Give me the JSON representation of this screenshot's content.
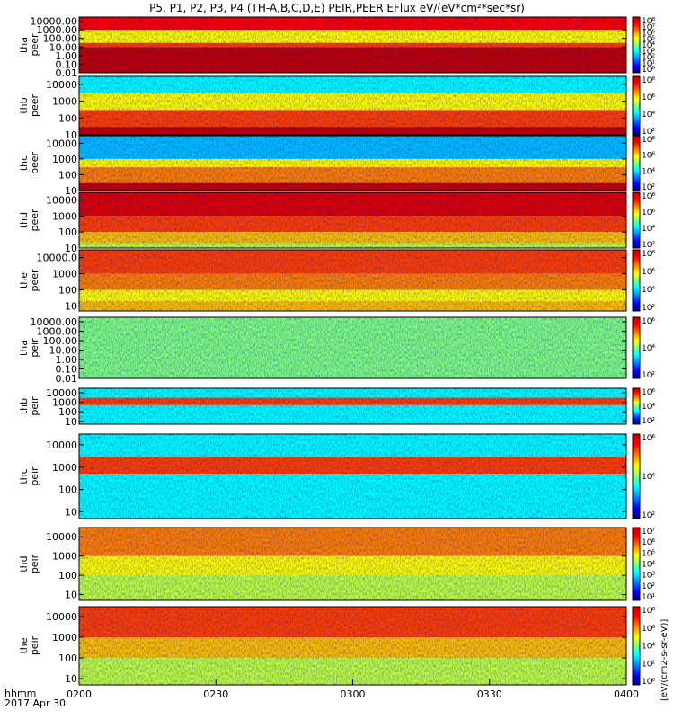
{
  "chart_data": {
    "type": "heatmap",
    "title": "P5, P1, P2, P3, P4 (TH-A,B,C,D,E) PEIR,PEER EFlux eV/(eV*cm²*sec*sr)",
    "x_corner_label": "hhmm",
    "x_date_label": "2017 Apr 30",
    "x_ticks": [
      "0200",
      "0230",
      "0300",
      "0330",
      "0400"
    ],
    "x_range": [
      "0200",
      "0400"
    ],
    "colorbar_unit_label": "[eV/(cm2-s-sr-eV)]",
    "panels": [
      {
        "probe": "tha",
        "species": "peer",
        "ytitle": "tha\npeer",
        "yscale": "log",
        "yrange": [
          0.01,
          30000
        ],
        "yticks": [
          "10000.00",
          "1000.00",
          "100.00",
          "10.00",
          "1.00",
          "0.10",
          "0.01"
        ],
        "cbar_ticks": [
          "10⁸",
          "10⁷",
          "10⁶",
          "10⁵",
          "10⁴",
          "10³",
          "10²",
          "10¹",
          "10⁰"
        ],
        "flux_by_band": [
          {
            "band": "1000-30000 eV",
            "log_flux": 7.0
          },
          {
            "band": "30-1000 eV",
            "log_flux": 5.0
          },
          {
            "band": "10-30 eV",
            "log_flux": 6.5
          },
          {
            "band": "0.01-10 eV",
            "log_flux": 8.0
          }
        ]
      },
      {
        "probe": "thb",
        "species": "peer",
        "ytitle": "thb\npeer",
        "yscale": "log",
        "yrange": [
          10,
          30000
        ],
        "yticks": [
          "10000",
          "1000",
          "100",
          "10"
        ],
        "cbar_ticks": [
          "10⁸",
          "10⁶",
          "10⁴",
          "10²"
        ],
        "flux_by_band": [
          {
            "band": "3000-30000 eV",
            "log_flux": 3.0
          },
          {
            "band": "300-3000 eV",
            "log_flux": 5.0
          },
          {
            "band": "30-300 eV",
            "log_flux": 6.5
          },
          {
            "band": "10-30 eV",
            "log_flux": 8.0
          }
        ]
      },
      {
        "probe": "thc",
        "species": "peer",
        "ytitle": "thc\npeer",
        "yscale": "log",
        "yrange": [
          10,
          30000
        ],
        "yticks": [
          "10000",
          "1000",
          "100",
          "10"
        ],
        "cbar_ticks": [
          "10⁸",
          "10⁶",
          "10⁴",
          "10²"
        ],
        "flux_by_band": [
          {
            "band": "1000-30000 eV",
            "log_flux": 2.5
          },
          {
            "band": "300-1000 eV",
            "log_flux": 5.0
          },
          {
            "band": "30-300 eV",
            "log_flux": 6.0
          },
          {
            "band": "10-30 eV",
            "log_flux": 8.0
          }
        ]
      },
      {
        "probe": "thd",
        "species": "peer",
        "ytitle": "thd\npeer",
        "yscale": "log",
        "yrange": [
          10,
          30000
        ],
        "yticks": [
          "10000",
          "1000",
          "100",
          "10"
        ],
        "cbar_ticks": [
          "10⁸",
          "10⁶",
          "10⁴",
          "10²"
        ],
        "flux_by_band": [
          {
            "band": "1000-30000 eV",
            "log_flux": 7.5
          },
          {
            "band": "100-1000 eV",
            "log_flux": 6.5
          },
          {
            "band": "20-100 eV",
            "log_flux": 5.5
          },
          {
            "band": "10-20 eV",
            "log_flux": 4.5
          }
        ]
      },
      {
        "probe": "the",
        "species": "peer",
        "ytitle": "the\npeer",
        "yscale": "log",
        "yrange": [
          5,
          30000
        ],
        "yticks": [
          "10000.0",
          "1000",
          "100",
          "10"
        ],
        "cbar_ticks": [
          "10⁸",
          "10⁶",
          "10⁴",
          "10²"
        ],
        "flux_by_band": [
          {
            "band": "1000-30000 eV",
            "log_flux": 6.5
          },
          {
            "band": "100-1000 eV",
            "log_flux": 6.0
          },
          {
            "band": "20-100 eV",
            "log_flux": 5.0
          },
          {
            "band": "5-20 eV",
            "log_flux": 5.5
          }
        ]
      },
      {
        "probe": "tha",
        "species": "peir",
        "ytitle": "tha\npeir",
        "yscale": "log",
        "yrange": [
          0.01,
          30000
        ],
        "yticks": [
          "10000.00",
          "1000.00",
          "100.00",
          "10.00",
          "1.00",
          "0.10",
          "0.01"
        ],
        "cbar_ticks": [
          "10⁶",
          "10⁴",
          "10²"
        ],
        "flux_by_band": [
          {
            "band": "0.01-30000 eV",
            "log_flux": 4.0
          }
        ]
      },
      {
        "probe": "thb",
        "species": "peir",
        "ytitle": "thb\npeir",
        "yscale": "log",
        "yrange": [
          5,
          30000
        ],
        "yticks": [
          "10000",
          "1000",
          "100",
          "10"
        ],
        "cbar_ticks": [
          "10⁶",
          "10⁴",
          "10²"
        ],
        "flux_by_band": [
          {
            "band": "3000-30000 eV",
            "log_flux": 3.0
          },
          {
            "band": "500-3000 eV",
            "log_flux": 6.5
          },
          {
            "band": "5-500 eV",
            "log_flux": 3.0
          }
        ]
      },
      {
        "probe": "thc",
        "species": "peir",
        "ytitle": "thc\npeir",
        "yscale": "log",
        "yrange": [
          5,
          30000
        ],
        "yticks": [
          "10000",
          "1000",
          "100",
          "10"
        ],
        "cbar_ticks": [
          "10⁶",
          "10⁴",
          "10²"
        ],
        "flux_by_band": [
          {
            "band": "3000-30000 eV",
            "log_flux": 3.0
          },
          {
            "band": "500-3000 eV",
            "log_flux": 6.5
          },
          {
            "band": "5-500 eV",
            "log_flux": 3.0
          }
        ]
      },
      {
        "probe": "thd",
        "species": "peir",
        "ytitle": "thd\npeir",
        "yscale": "log",
        "yrange": [
          5,
          30000
        ],
        "yticks": [
          "10000",
          "1000",
          "100",
          "10"
        ],
        "cbar_ticks": [
          "10⁷",
          "10⁶",
          "10⁵",
          "10⁴",
          "10³",
          "10²",
          "10¹"
        ],
        "flux_by_band": [
          {
            "band": "1000-30000 eV",
            "log_flux": 6.0
          },
          {
            "band": "100-1000 eV",
            "log_flux": 5.0
          },
          {
            "band": "5-100 eV",
            "log_flux": 4.5
          }
        ]
      },
      {
        "probe": "the",
        "species": "peir",
        "ytitle": "the\npeir",
        "yscale": "log",
        "yrange": [
          5,
          30000
        ],
        "yticks": [
          "10000",
          "1000",
          "100",
          "10"
        ],
        "cbar_ticks": [
          "10⁸",
          "10⁶",
          "10⁴",
          "10²",
          "10⁰"
        ],
        "flux_by_band": [
          {
            "band": "1000-30000 eV",
            "log_flux": 6.5
          },
          {
            "band": "100-1000 eV",
            "log_flux": 5.5
          },
          {
            "band": "5-100 eV",
            "log_flux": 4.5
          }
        ]
      }
    ]
  },
  "colors": {
    "colormap": [
      "#000080",
      "#0000ff",
      "#0080ff",
      "#00ffff",
      "#80ff80",
      "#ffff00",
      "#ff8000",
      "#ff0000",
      "#c00000"
    ],
    "flag_bar": "#ff0000",
    "axis": "#000000"
  }
}
